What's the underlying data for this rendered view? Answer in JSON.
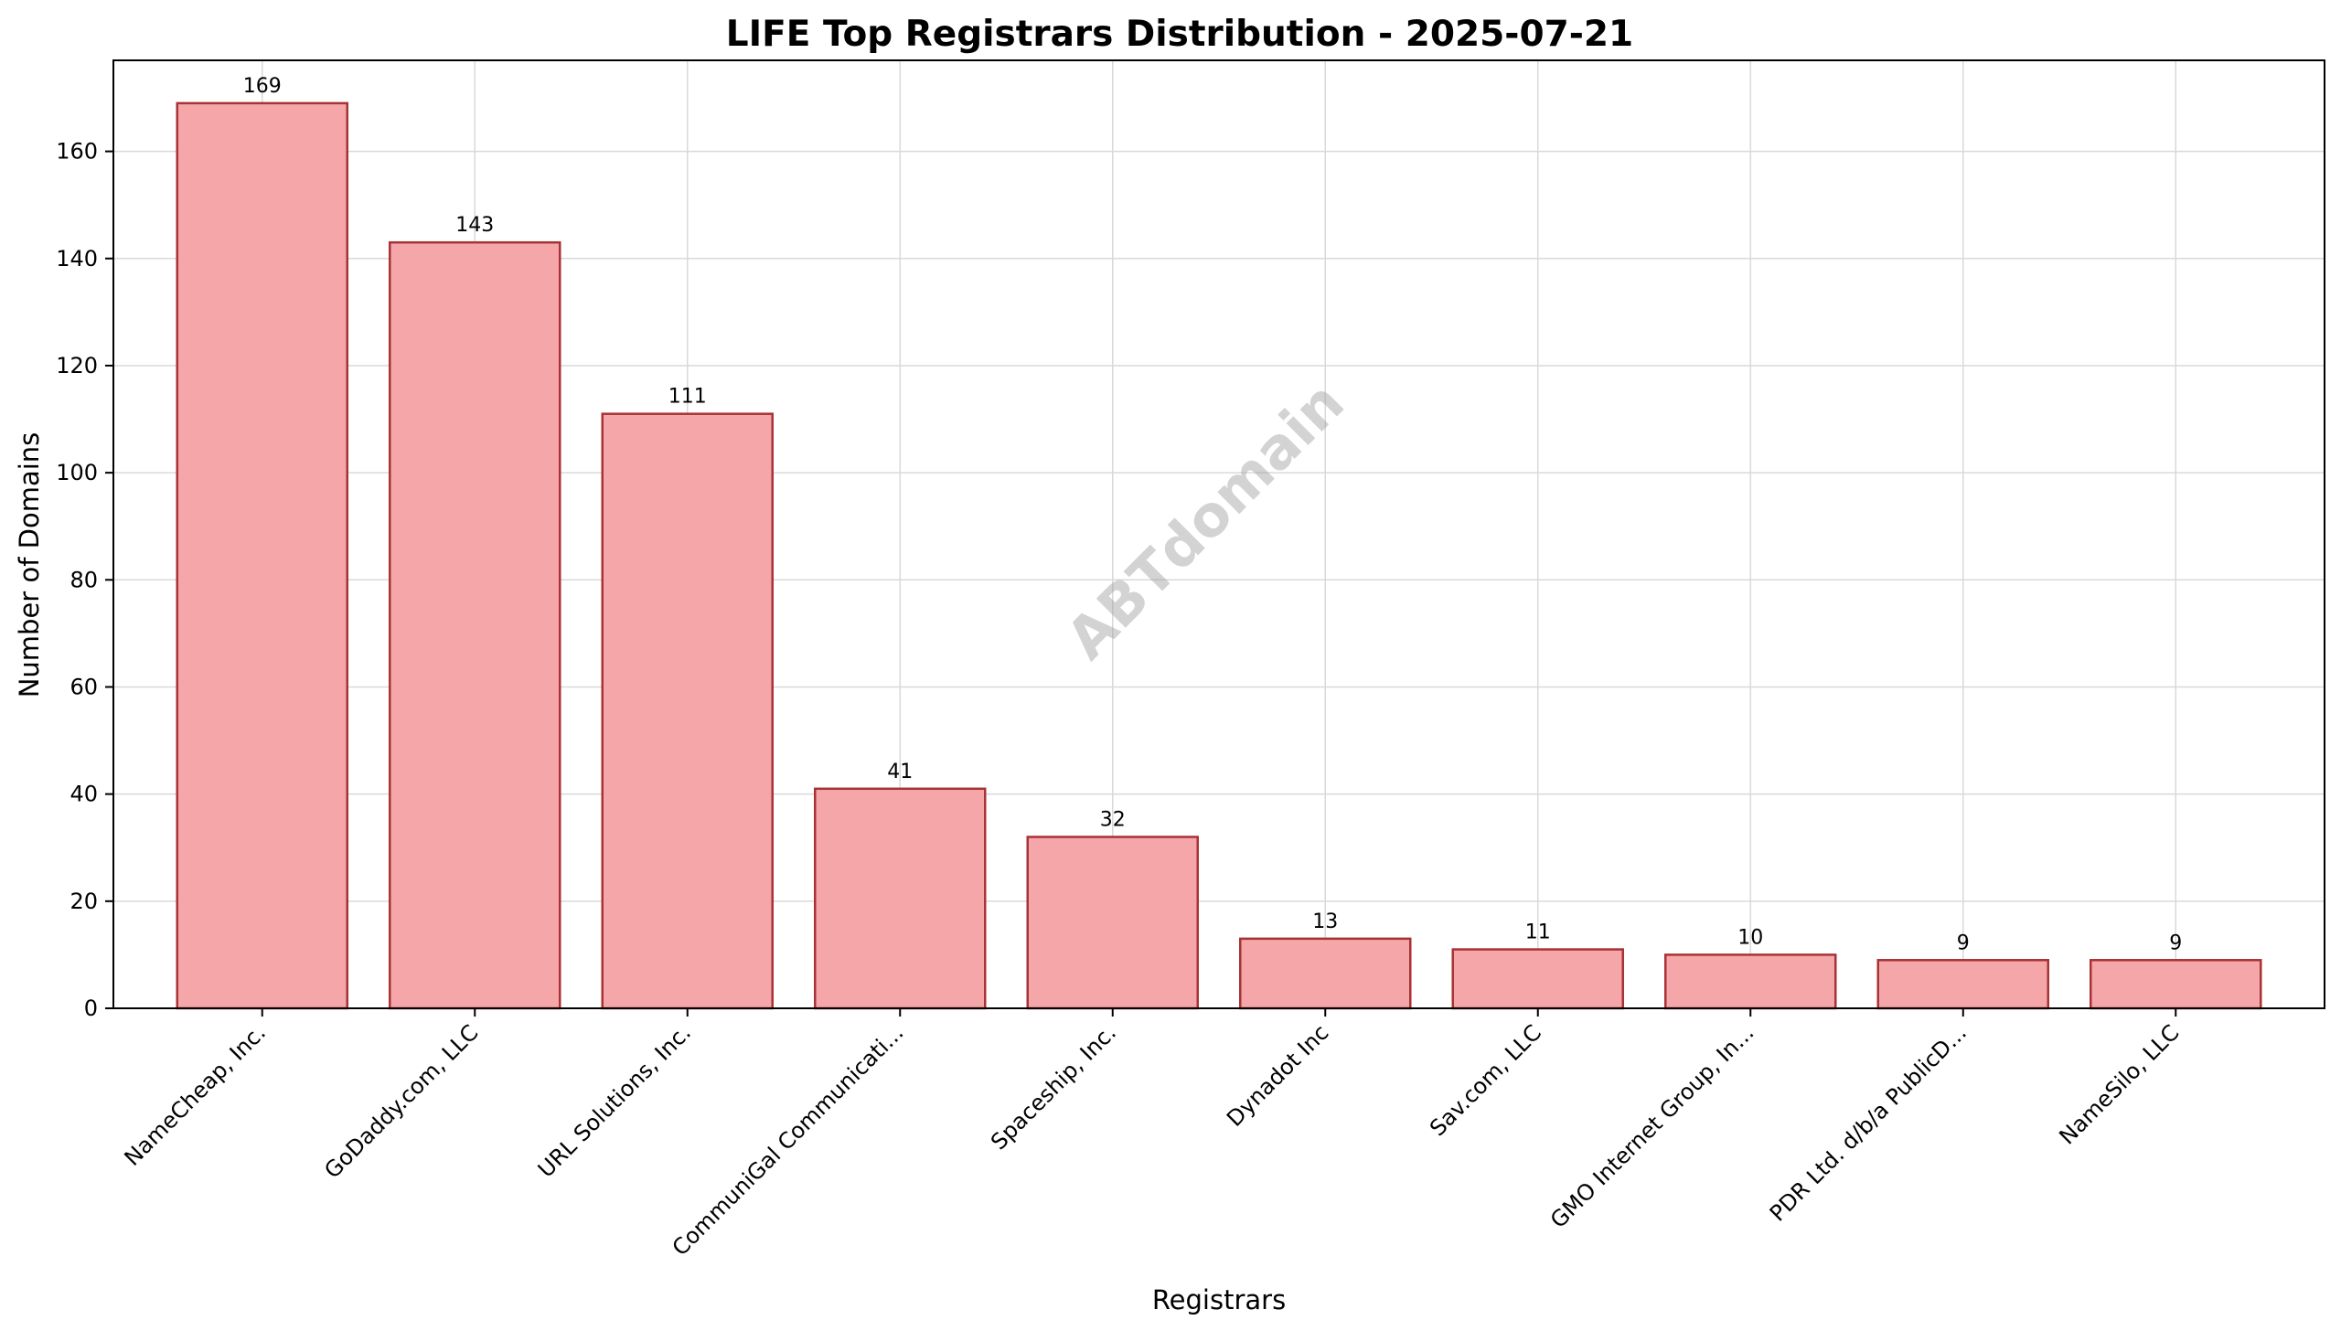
{
  "chart_data": {
    "type": "bar",
    "title": "LIFE Top Registrars Distribution - 2025-07-21",
    "xlabel": "Registrars",
    "ylabel": "Number of Domains",
    "categories": [
      "NameCheap, Inc.",
      "GoDaddy.com, LLC",
      "URL Solutions, Inc.",
      "CommuniGal Communicati...",
      "Spaceship, Inc.",
      "Dynadot Inc",
      "Sav.com, LLC",
      "GMO Internet Group, In...",
      "PDR Ltd. d/b/a PublicD...",
      "NameSilo, LLC"
    ],
    "values": [
      169,
      143,
      111,
      41,
      32,
      13,
      11,
      10,
      9,
      9
    ],
    "data_labels": [
      "169",
      "143",
      "111",
      "41",
      "32",
      "13",
      "11",
      "10",
      "9",
      "9"
    ],
    "ylim": [
      0,
      177
    ],
    "yticks": [
      0,
      20,
      40,
      60,
      80,
      100,
      120,
      140,
      160
    ],
    "ytick_labels": [
      "0",
      "20",
      "40",
      "60",
      "80",
      "100",
      "120",
      "140",
      "160"
    ],
    "grid": true,
    "watermark": "ABTdomain",
    "colors": {
      "bar_fill": "#f4a6a8",
      "bar_edge": "#a83236"
    }
  }
}
